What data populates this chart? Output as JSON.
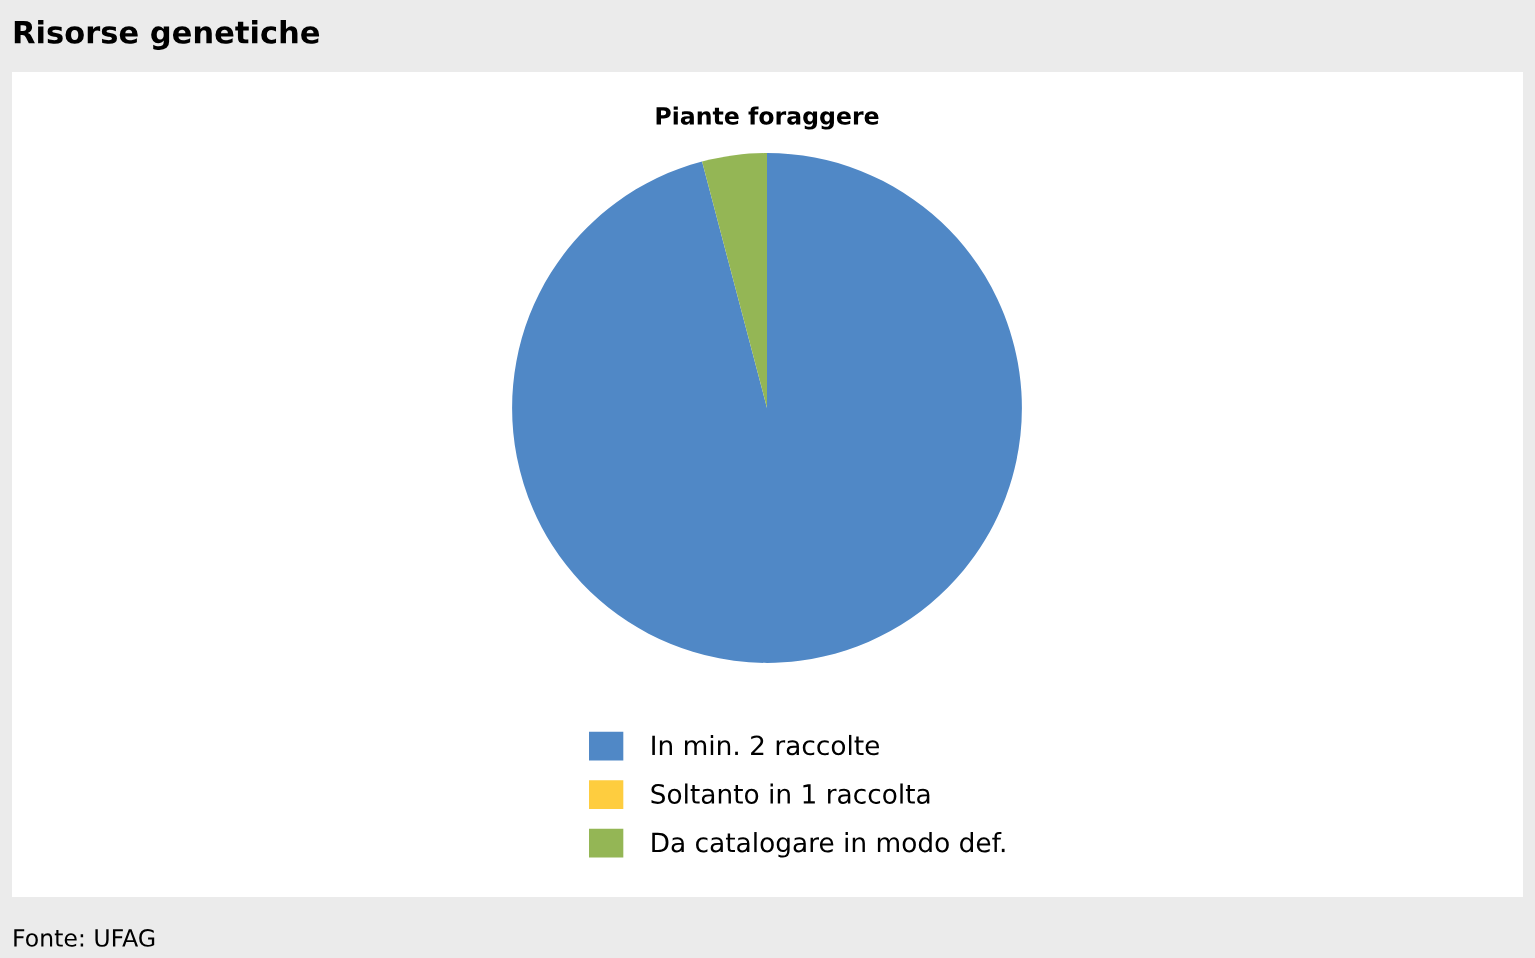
{
  "chart_data": {
    "type": "pie",
    "title": "Piante foraggere",
    "subtitle": "Risorse genetiche",
    "categories": [
      "In min. 2 raccolte",
      "Soltanto in 1 raccolta",
      "Da catalogare in modo def."
    ],
    "values": [
      95.9,
      0,
      4.1
    ],
    "colors": [
      "#5088c6",
      "#fecd3f",
      "#94b655"
    ],
    "legend": "bottom",
    "annotations": [
      "Fonte: UFAG"
    ]
  }
}
